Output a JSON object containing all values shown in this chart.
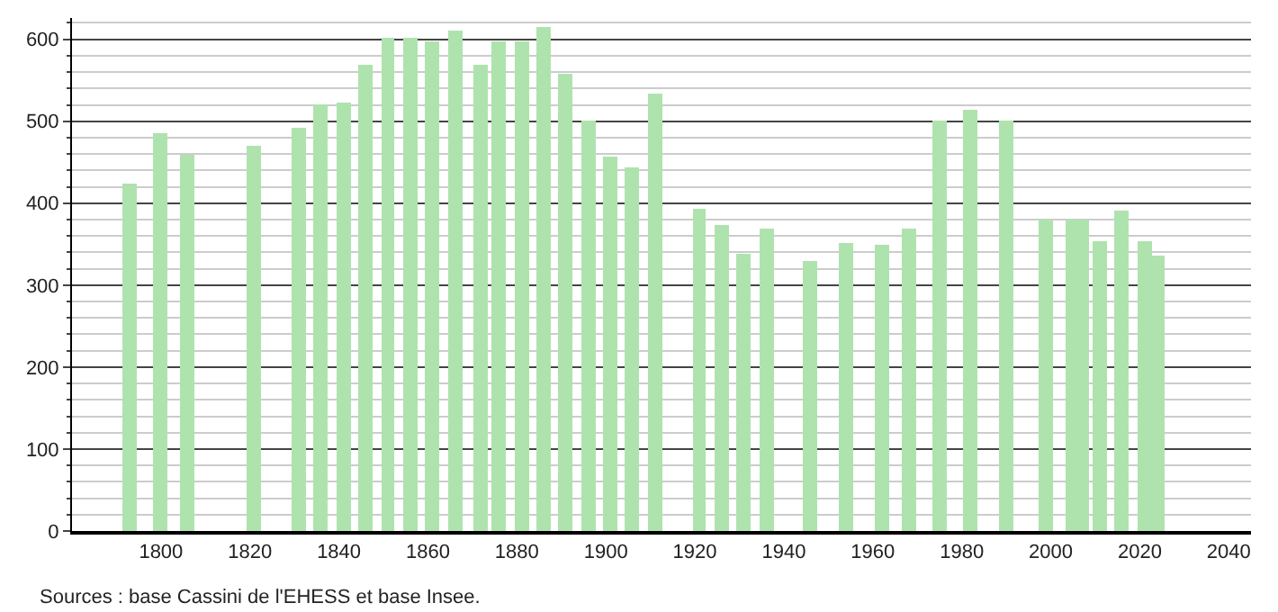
{
  "chart_data": {
    "type": "bar",
    "x": [
      1793,
      1800,
      1806,
      1821,
      1831,
      1836,
      1841,
      1846,
      1851,
      1856,
      1861,
      1866,
      1872,
      1876,
      1881,
      1886,
      1891,
      1896,
      1901,
      1906,
      1911,
      1921,
      1926,
      1931,
      1936,
      1946,
      1954,
      1962,
      1968,
      1975,
      1982,
      1990,
      1999,
      2005,
      2007,
      2011,
      2016,
      2021,
      2024
    ],
    "values": [
      424,
      486,
      460,
      469,
      493,
      520,
      523,
      568,
      602,
      602,
      598,
      611,
      568,
      597,
      597,
      616,
      557,
      500,
      457,
      444,
      533,
      394,
      374,
      338,
      369,
      330,
      351,
      349,
      369,
      500,
      513,
      500,
      380,
      380,
      380,
      353,
      391,
      353,
      335
    ],
    "color": "#aee3ae",
    "xlim": [
      1780,
      2045
    ],
    "xticks": [
      1800,
      1820,
      1840,
      1860,
      1880,
      1900,
      1920,
      1940,
      1960,
      1980,
      2000,
      2020,
      2040
    ],
    "ylim": [
      0,
      626
    ],
    "yticks": [
      0,
      100,
      200,
      300,
      400,
      500,
      600
    ],
    "grid": "y",
    "annotations": [
      "Sources : base Cassini de l'EHESS et base Insee."
    ]
  }
}
